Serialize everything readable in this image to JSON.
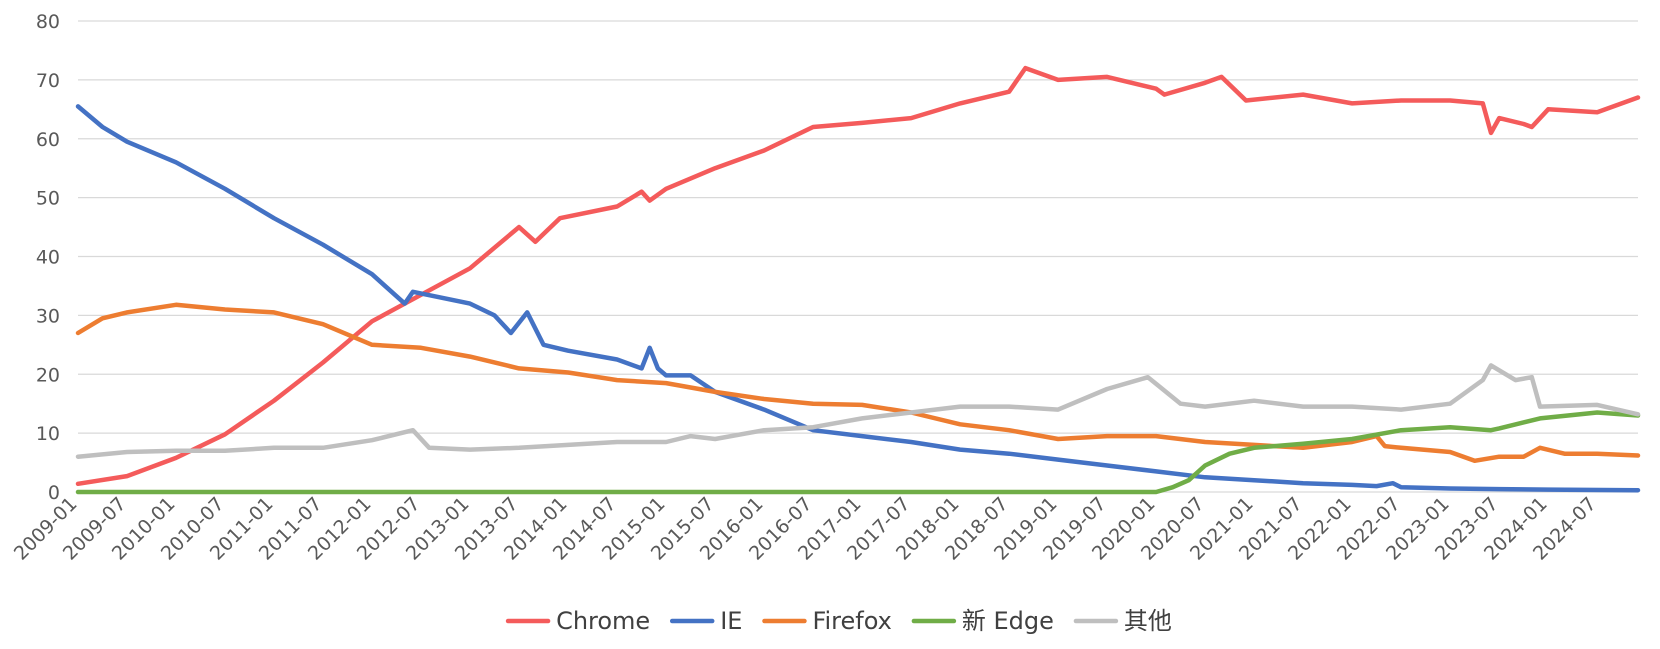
{
  "chart_data": {
    "type": "line",
    "title": "",
    "xlabel": "",
    "ylabel": "",
    "ylim": [
      0,
      80
    ],
    "yticks": [
      0,
      10,
      20,
      30,
      40,
      50,
      60,
      70,
      80
    ],
    "grid": true,
    "legend_position": "bottom",
    "x_start": "2009-01",
    "x_end": "2024-12",
    "x_tick_labels": [
      "2009-01",
      "2009-07",
      "2010-01",
      "2010-07",
      "2011-01",
      "2011-07",
      "2012-01",
      "2012-07",
      "2013-01",
      "2013-07",
      "2014-01",
      "2014-07",
      "2015-01",
      "2015-07",
      "2016-01",
      "2016-07",
      "2017-01",
      "2017-07",
      "2018-01",
      "2018-07",
      "2019-01",
      "2019-07",
      "2020-01",
      "2020-07",
      "2021-01",
      "2021-07",
      "2022-01",
      "2022-07",
      "2023-01",
      "2023-07",
      "2024-01",
      "2024-07"
    ],
    "series": [
      {
        "name": "Chrome",
        "color": "#f45b5b",
        "points": [
          [
            "2009-01",
            1.4
          ],
          [
            "2009-07",
            2.7
          ],
          [
            "2010-01",
            5.8
          ],
          [
            "2010-07",
            9.8
          ],
          [
            "2011-01",
            15.5
          ],
          [
            "2011-07",
            22.0
          ],
          [
            "2012-01",
            29.0
          ],
          [
            "2012-07",
            33.5
          ],
          [
            "2013-01",
            38.0
          ],
          [
            "2013-04",
            41.5
          ],
          [
            "2013-07",
            45.0
          ],
          [
            "2013-09",
            42.5
          ],
          [
            "2013-12",
            46.5
          ],
          [
            "2014-07",
            48.5
          ],
          [
            "2014-10",
            51.0
          ],
          [
            "2014-11",
            49.5
          ],
          [
            "2015-01",
            51.5
          ],
          [
            "2015-07",
            55.0
          ],
          [
            "2016-01",
            58.0
          ],
          [
            "2016-07",
            62.0
          ],
          [
            "2017-01",
            62.7
          ],
          [
            "2017-07",
            63.5
          ],
          [
            "2018-01",
            66.0
          ],
          [
            "2018-07",
            68.0
          ],
          [
            "2018-09",
            72.0
          ],
          [
            "2019-01",
            70.0
          ],
          [
            "2019-07",
            70.5
          ],
          [
            "2020-01",
            68.5
          ],
          [
            "2020-02",
            67.5
          ],
          [
            "2020-07",
            69.5
          ],
          [
            "2020-09",
            70.5
          ],
          [
            "2020-12",
            66.5
          ],
          [
            "2021-07",
            67.5
          ],
          [
            "2022-01",
            66.0
          ],
          [
            "2022-07",
            66.5
          ],
          [
            "2023-01",
            66.5
          ],
          [
            "2023-05",
            66.0
          ],
          [
            "2023-06",
            61.0
          ],
          [
            "2023-07",
            63.5
          ],
          [
            "2023-10",
            62.5
          ],
          [
            "2023-11",
            62.0
          ],
          [
            "2024-01",
            65.0
          ],
          [
            "2024-07",
            64.5
          ],
          [
            "2024-12",
            67.0
          ]
        ]
      },
      {
        "name": "IE",
        "color": "#4472c4",
        "points": [
          [
            "2009-01",
            65.5
          ],
          [
            "2009-04",
            62.0
          ],
          [
            "2009-07",
            59.5
          ],
          [
            "2010-01",
            56.0
          ],
          [
            "2010-07",
            51.5
          ],
          [
            "2011-01",
            46.5
          ],
          [
            "2011-07",
            42.0
          ],
          [
            "2012-01",
            37.0
          ],
          [
            "2012-05",
            32.0
          ],
          [
            "2012-06",
            34.0
          ],
          [
            "2013-01",
            32.0
          ],
          [
            "2013-04",
            30.0
          ],
          [
            "2013-06",
            27.0
          ],
          [
            "2013-08",
            30.5
          ],
          [
            "2013-10",
            25.0
          ],
          [
            "2014-01",
            24.0
          ],
          [
            "2014-07",
            22.5
          ],
          [
            "2014-10",
            21.0
          ],
          [
            "2014-11",
            24.5
          ],
          [
            "2014-12",
            21.0
          ],
          [
            "2015-01",
            19.8
          ],
          [
            "2015-04",
            19.8
          ],
          [
            "2015-07",
            17.0
          ],
          [
            "2016-01",
            14.0
          ],
          [
            "2016-07",
            10.5
          ],
          [
            "2017-01",
            9.5
          ],
          [
            "2017-07",
            8.5
          ],
          [
            "2018-01",
            7.2
          ],
          [
            "2018-07",
            6.5
          ],
          [
            "2019-01",
            5.5
          ],
          [
            "2019-07",
            4.5
          ],
          [
            "2020-01",
            3.5
          ],
          [
            "2020-07",
            2.5
          ],
          [
            "2021-01",
            2.0
          ],
          [
            "2021-07",
            1.5
          ],
          [
            "2022-01",
            1.2
          ],
          [
            "2022-04",
            1.0
          ],
          [
            "2022-06",
            1.5
          ],
          [
            "2022-07",
            0.8
          ],
          [
            "2023-01",
            0.6
          ],
          [
            "2023-07",
            0.5
          ],
          [
            "2024-01",
            0.4
          ],
          [
            "2024-12",
            0.3
          ]
        ]
      },
      {
        "name": "Firefox",
        "color": "#ed7d31",
        "points": [
          [
            "2009-01",
            27.0
          ],
          [
            "2009-04",
            29.5
          ],
          [
            "2009-07",
            30.5
          ],
          [
            "2010-01",
            31.8
          ],
          [
            "2010-07",
            31.0
          ],
          [
            "2011-01",
            30.5
          ],
          [
            "2011-07",
            28.5
          ],
          [
            "2012-01",
            25.0
          ],
          [
            "2012-07",
            24.5
          ],
          [
            "2013-01",
            23.0
          ],
          [
            "2013-07",
            21.0
          ],
          [
            "2014-01",
            20.3
          ],
          [
            "2014-07",
            19.0
          ],
          [
            "2015-01",
            18.5
          ],
          [
            "2015-07",
            17.0
          ],
          [
            "2016-01",
            15.8
          ],
          [
            "2016-07",
            15.0
          ],
          [
            "2017-01",
            14.8
          ],
          [
            "2017-07",
            13.5
          ],
          [
            "2018-01",
            11.5
          ],
          [
            "2018-07",
            10.5
          ],
          [
            "2019-01",
            9.0
          ],
          [
            "2019-07",
            9.5
          ],
          [
            "2020-01",
            9.5
          ],
          [
            "2020-07",
            8.5
          ],
          [
            "2021-01",
            8.0
          ],
          [
            "2021-07",
            7.5
          ],
          [
            "2022-01",
            8.5
          ],
          [
            "2022-04",
            9.5
          ],
          [
            "2022-05",
            7.8
          ],
          [
            "2022-07",
            7.5
          ],
          [
            "2023-01",
            6.8
          ],
          [
            "2023-04",
            5.3
          ],
          [
            "2023-07",
            6.0
          ],
          [
            "2023-10",
            6.0
          ],
          [
            "2023-12",
            7.5
          ],
          [
            "2024-03",
            6.5
          ],
          [
            "2024-07",
            6.5
          ],
          [
            "2024-12",
            6.2
          ]
        ]
      },
      {
        "name": "新 Edge",
        "color": "#70ad47",
        "points": [
          [
            "2009-01",
            0
          ],
          [
            "2020-01",
            0
          ],
          [
            "2020-03",
            0.8
          ],
          [
            "2020-05",
            2.0
          ],
          [
            "2020-07",
            4.5
          ],
          [
            "2020-10",
            6.5
          ],
          [
            "2021-01",
            7.5
          ],
          [
            "2021-07",
            8.2
          ],
          [
            "2022-01",
            9.0
          ],
          [
            "2022-07",
            10.5
          ],
          [
            "2023-01",
            11.0
          ],
          [
            "2023-06",
            10.5
          ],
          [
            "2023-07",
            10.8
          ],
          [
            "2023-12",
            12.5
          ],
          [
            "2024-07",
            13.5
          ],
          [
            "2024-12",
            13.0
          ]
        ]
      },
      {
        "name": "其他",
        "color": "#bfbfbf",
        "points": [
          [
            "2009-01",
            6.0
          ],
          [
            "2009-07",
            6.8
          ],
          [
            "2010-01",
            7.0
          ],
          [
            "2010-07",
            7.0
          ],
          [
            "2011-01",
            7.5
          ],
          [
            "2011-07",
            7.5
          ],
          [
            "2012-01",
            8.8
          ],
          [
            "2012-06",
            10.5
          ],
          [
            "2012-08",
            7.5
          ],
          [
            "2013-01",
            7.2
          ],
          [
            "2013-07",
            7.5
          ],
          [
            "2014-01",
            8.0
          ],
          [
            "2014-07",
            8.5
          ],
          [
            "2015-01",
            8.5
          ],
          [
            "2015-04",
            9.5
          ],
          [
            "2015-07",
            9.0
          ],
          [
            "2016-01",
            10.5
          ],
          [
            "2016-07",
            11.0
          ],
          [
            "2017-01",
            12.5
          ],
          [
            "2017-07",
            13.5
          ],
          [
            "2018-01",
            14.5
          ],
          [
            "2018-07",
            14.5
          ],
          [
            "2019-01",
            14.0
          ],
          [
            "2019-07",
            17.5
          ],
          [
            "2019-12",
            19.5
          ],
          [
            "2020-04",
            15.0
          ],
          [
            "2020-07",
            14.5
          ],
          [
            "2021-01",
            15.5
          ],
          [
            "2021-07",
            14.5
          ],
          [
            "2022-01",
            14.5
          ],
          [
            "2022-07",
            14.0
          ],
          [
            "2023-01",
            15.0
          ],
          [
            "2023-05",
            19.0
          ],
          [
            "2023-06",
            21.5
          ],
          [
            "2023-09",
            19.0
          ],
          [
            "2023-11",
            19.5
          ],
          [
            "2023-12",
            14.5
          ],
          [
            "2024-07",
            14.8
          ],
          [
            "2024-12",
            13.2
          ]
        ]
      }
    ]
  }
}
